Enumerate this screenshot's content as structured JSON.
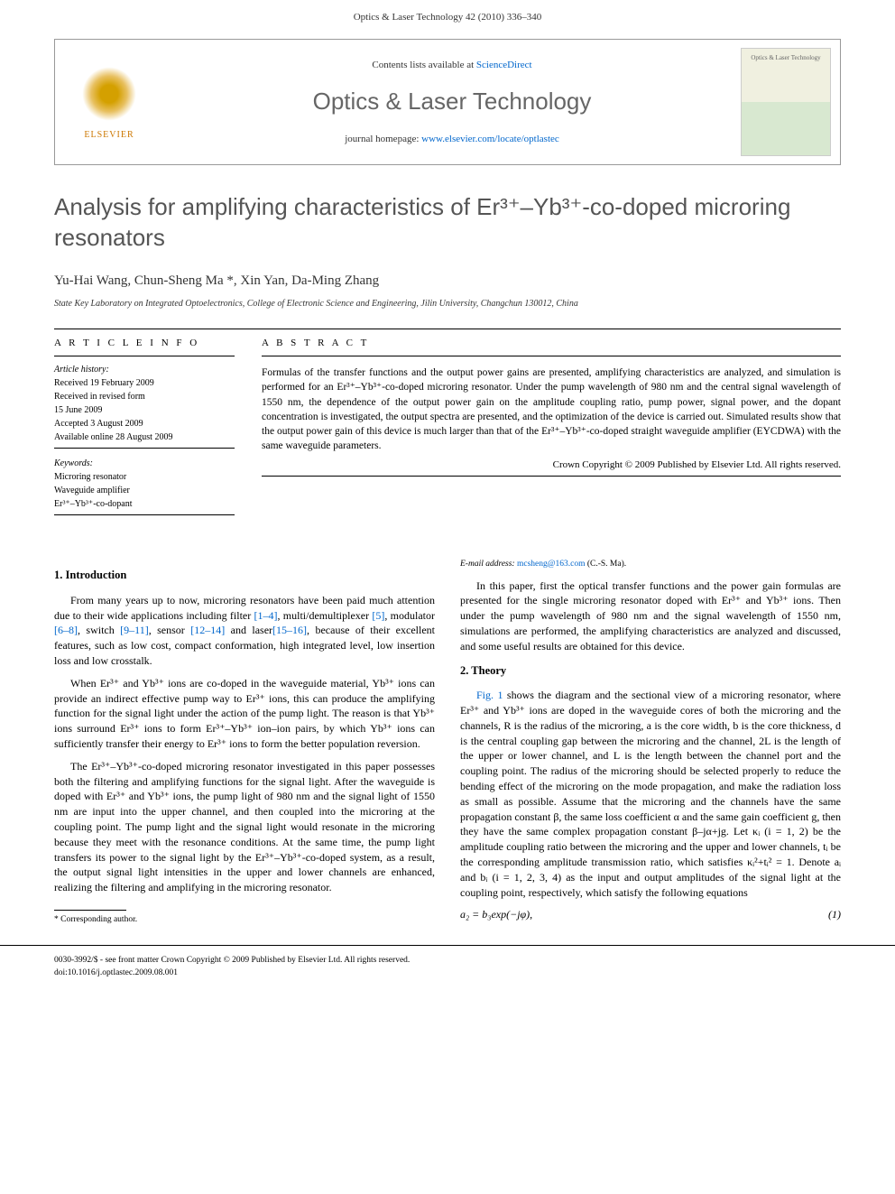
{
  "page_header": "Optics & Laser Technology 42 (2010) 336–340",
  "meta": {
    "contents_prefix": "Contents lists available at ",
    "contents_link": "ScienceDirect",
    "journal": "Optics & Laser Technology",
    "homepage_prefix": "journal homepage: ",
    "homepage_link": "www.elsevier.com/locate/optlastec",
    "elsevier_label": "ELSEVIER",
    "cover_text": "Optics & Laser Technology"
  },
  "title": "Analysis for amplifying characteristics of Er³⁺–Yb³⁺-co-doped microring resonators",
  "authors": "Yu-Hai Wang, Chun-Sheng Ma *, Xin Yan, Da-Ming Zhang",
  "affiliation": "State Key Laboratory on Integrated Optoelectronics, College of Electronic Science and Engineering, Jilin University, Changchun 130012, China",
  "info_heading": "A R T I C L E  I N F O",
  "abstract_heading": "A B S T R A C T",
  "history": {
    "label": "Article history:",
    "received": "Received 19 February 2009",
    "revised": "Received in revised form",
    "revised_date": "15 June 2009",
    "accepted": "Accepted 3 August 2009",
    "online": "Available online 28 August 2009"
  },
  "keywords": {
    "label": "Keywords:",
    "k1": "Microring resonator",
    "k2": "Waveguide amplifier",
    "k3": "Er³⁺–Yb³⁺-co-dopant"
  },
  "abstract": "Formulas of the transfer functions and the output power gains are presented, amplifying characteristics are analyzed, and simulation is performed for an Er³⁺–Yb³⁺-co-doped microring resonator. Under the pump wavelength of 980 nm and the central signal wavelength of 1550 nm, the dependence of the output power gain on the amplitude coupling ratio, pump power, signal power, and the dopant concentration is investigated, the output spectra are presented, and the optimization of the device is carried out. Simulated results show that the output power gain of this device is much larger than that of the Er³⁺–Yb³⁺-co-doped straight waveguide amplifier (EYCDWA) with the same waveguide parameters.",
  "copyright": "Crown Copyright © 2009 Published by Elsevier Ltd. All rights reserved.",
  "sections": {
    "s1_title": "1. Introduction",
    "s1_p1a": "From many years up to now, microring resonators have been paid much attention due to their wide applications including filter ",
    "s1_p1_r1": "[1–4]",
    "s1_p1b": ", multi/demultiplexer ",
    "s1_p1_r2": "[5]",
    "s1_p1c": ", modulator ",
    "s1_p1_r3": "[6–8]",
    "s1_p1d": ", switch ",
    "s1_p1_r4": "[9–11]",
    "s1_p1e": ", sensor ",
    "s1_p1_r5": "[12–14]",
    "s1_p1f": " and laser",
    "s1_p1_r6": "[15–16]",
    "s1_p1g": ", because of their excellent features, such as low cost, compact conformation, high integrated level, low insertion loss and low crosstalk.",
    "s1_p2": "When Er³⁺ and Yb³⁺ ions are co-doped in the waveguide material, Yb³⁺ ions can provide an indirect effective pump way to Er³⁺ ions, this can produce the amplifying function for the signal light under the action of the pump light. The reason is that Yb³⁺ ions surround Er³⁺ ions to form Er³⁺–Yb³⁺ ion–ion pairs, by which Yb³⁺ ions can sufficiently transfer their energy to Er³⁺ ions to form the better population reversion.",
    "s1_p3": "The Er³⁺–Yb³⁺-co-doped microring resonator investigated in this paper possesses both the filtering and amplifying functions for the signal light. After the waveguide is doped with Er³⁺ and Yb³⁺ ions, the pump light of 980 nm and the signal light of 1550 nm are input into the upper channel, and then coupled into the microring at the coupling point. The pump light and the signal light would resonate in the microring because they meet with the resonance conditions. At the same time, the pump light transfers its power to the signal light by the Er³⁺–Yb³⁺-co-doped system, as a result, the output signal light intensities in the upper and lower channels are enhanced, realizing the filtering and amplifying in the microring resonator.",
    "s1_p4": "In this paper, first the optical transfer functions and the power gain formulas are presented for the single microring resonator doped with Er³⁺ and Yb³⁺ ions. Then under the pump wavelength of 980 nm and the signal wavelength of 1550 nm, simulations are performed, the amplifying characteristics are analyzed and discussed, and some useful results are obtained for this device.",
    "s2_title": "2. Theory",
    "s2_p1a": "",
    "s2_p1_fig": "Fig. 1",
    "s2_p1b": " shows the diagram and the sectional view of a microring resonator, where Er³⁺ and Yb³⁺ ions are doped in the waveguide cores of both the microring and the channels, R is the radius of the microring, a is the core width, b is the core thickness, d is the central coupling gap between the microring and the channel, 2L is the length of the upper or lower channel, and L is the length between the channel port and the coupling point. The radius of the microring should be selected properly to reduce the bending effect of the microring on the mode propagation, and make the radiation loss as small as possible. Assume that the microring and the channels have the same propagation constant β, the same loss coefficient α and the same gain coefficient g, then they have the same complex propagation constant β–jα+jg. Let κᵢ (i = 1, 2) be the amplitude coupling ratio between the microring and the upper and lower channels, tᵢ be the corresponding amplitude transmission ratio, which satisfies κᵢ²+tᵢ² = 1. Denote aᵢ and bᵢ (i = 1, 2, 3, 4) as the input and output amplitudes of the signal light at the coupling point, respectively, which satisfy the following equations",
    "eq1": "a₂ = b₃exp(−jφ),",
    "eq1_num": "(1)"
  },
  "footnote": {
    "corr": "* Corresponding author.",
    "email_label": "E-mail address: ",
    "email": "mcsheng@163.com",
    "email_suffix": " (C.-S. Ma)."
  },
  "footer": {
    "line1": "0030-3992/$ - see front matter Crown Copyright © 2009 Published by Elsevier Ltd. All rights reserved.",
    "line2": "doi:10.1016/j.optlastec.2009.08.001"
  }
}
